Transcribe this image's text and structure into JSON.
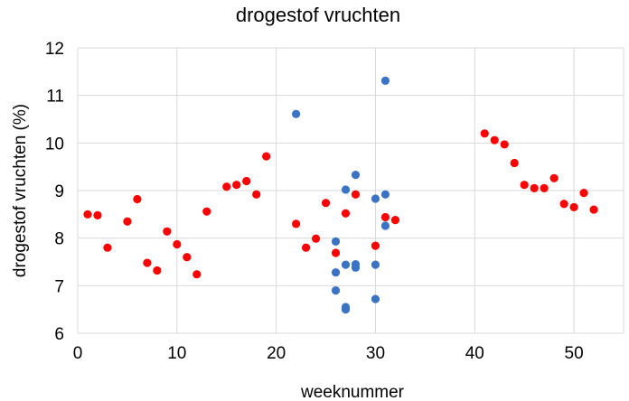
{
  "chart_data": {
    "type": "scatter",
    "title": "drogestof vruchten",
    "xlabel": "weeknummer",
    "ylabel": "drogestof vruchten (%)",
    "xlim": [
      0,
      55
    ],
    "ylim": [
      6,
      12
    ],
    "xticks": [
      0,
      10,
      20,
      30,
      40,
      50
    ],
    "yticks": [
      6,
      7,
      8,
      9,
      10,
      11,
      12
    ],
    "grid": true,
    "legend": "none",
    "series": [
      {
        "color": "#ff0000",
        "points": [
          [
            1,
            8.5
          ],
          [
            2,
            8.48
          ],
          [
            3,
            7.8
          ],
          [
            5,
            8.35
          ],
          [
            6,
            8.82
          ],
          [
            7,
            7.48
          ],
          [
            8,
            7.32
          ],
          [
            9,
            8.14
          ],
          [
            10,
            7.87
          ],
          [
            11,
            7.6
          ],
          [
            12,
            7.24
          ],
          [
            13,
            8.56
          ],
          [
            15,
            9.08
          ],
          [
            16,
            9.12
          ],
          [
            17,
            9.2
          ],
          [
            18,
            8.92
          ],
          [
            19,
            9.72
          ],
          [
            22,
            8.3
          ],
          [
            23,
            7.8
          ],
          [
            24,
            7.99
          ],
          [
            25,
            8.74
          ],
          [
            26,
            7.69
          ],
          [
            27,
            8.52
          ],
          [
            28,
            8.92
          ],
          [
            30,
            7.84
          ],
          [
            31,
            8.44
          ],
          [
            32,
            8.38
          ],
          [
            41,
            10.2
          ],
          [
            42,
            10.06
          ],
          [
            43,
            9.97
          ],
          [
            44,
            9.58
          ],
          [
            45,
            9.12
          ],
          [
            46,
            9.05
          ],
          [
            47,
            9.05
          ],
          [
            48,
            9.26
          ],
          [
            49,
            8.72
          ],
          [
            50,
            8.65
          ],
          [
            51,
            8.95
          ],
          [
            52,
            8.6
          ]
        ]
      },
      {
        "color": "#3a73c4",
        "points": [
          [
            22,
            10.61
          ],
          [
            26,
            7.93
          ],
          [
            26,
            7.28
          ],
          [
            26,
            6.9
          ],
          [
            27,
            9.02
          ],
          [
            27,
            7.44
          ],
          [
            27,
            6.55
          ],
          [
            27,
            6.5
          ],
          [
            28,
            9.33
          ],
          [
            28,
            7.45
          ],
          [
            28,
            7.38
          ],
          [
            30,
            8.83
          ],
          [
            30,
            7.44
          ],
          [
            30,
            6.72
          ],
          [
            31,
            11.31
          ],
          [
            31,
            8.92
          ],
          [
            31,
            8.26
          ]
        ]
      }
    ]
  }
}
